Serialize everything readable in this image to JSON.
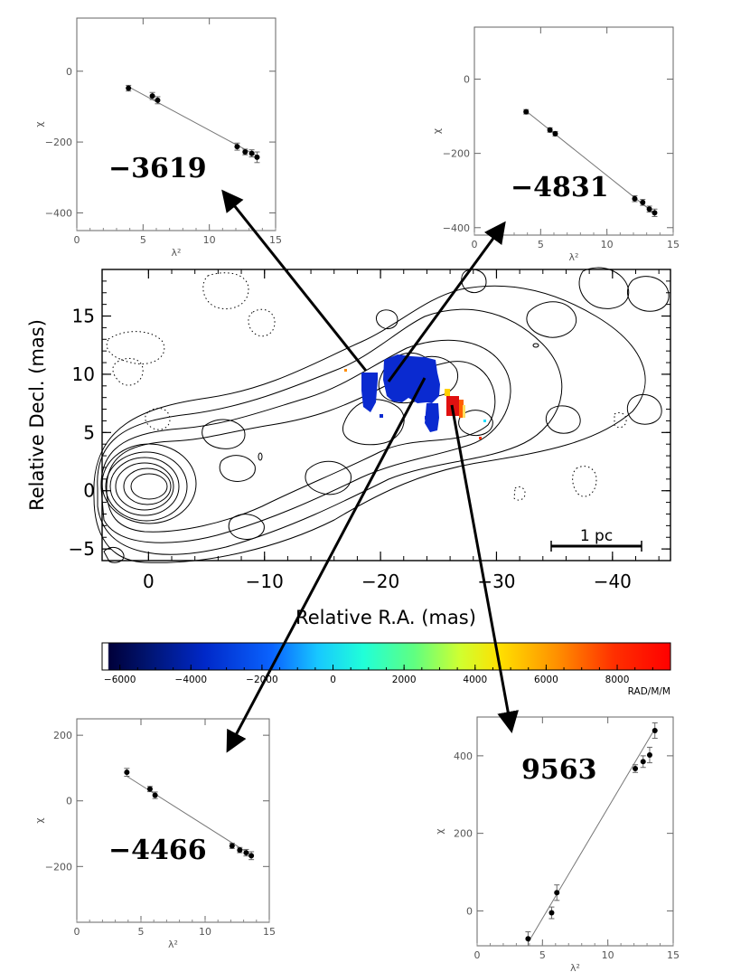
{
  "chart_data": [
    {
      "type": "scatter",
      "id": "rm-top-left",
      "rm_label": "−3619",
      "xlabel": "λ²",
      "ylabel": "χ",
      "xlim": [
        0,
        15
      ],
      "ylim": [
        -450,
        150
      ],
      "xticks": [
        0,
        5,
        10,
        15
      ],
      "yticks": [
        0,
        -200,
        -400
      ],
      "points": [
        {
          "x": 3.9,
          "y": -48,
          "err": 8
        },
        {
          "x": 5.7,
          "y": -70,
          "err": 10
        },
        {
          "x": 6.1,
          "y": -82,
          "err": 10
        },
        {
          "x": 12.1,
          "y": -213,
          "err": 10
        },
        {
          "x": 12.7,
          "y": -228,
          "err": 8
        },
        {
          "x": 13.2,
          "y": -232,
          "err": 10
        },
        {
          "x": 13.6,
          "y": -243,
          "err": 15
        }
      ],
      "fit": [
        [
          3.9,
          -44
        ],
        [
          13.6,
          -239
        ]
      ]
    },
    {
      "type": "scatter",
      "id": "rm-top-right",
      "rm_label": "−4831",
      "xlabel": "λ²",
      "ylabel": "χ",
      "xlim": [
        0,
        15
      ],
      "ylim": [
        -420,
        140
      ],
      "xticks": [
        0,
        5,
        10,
        15
      ],
      "yticks": [
        0,
        -200,
        -400
      ],
      "points": [
        {
          "x": 3.9,
          "y": -88,
          "err": 6
        },
        {
          "x": 5.7,
          "y": -137,
          "err": 6
        },
        {
          "x": 6.1,
          "y": -147,
          "err": 6
        },
        {
          "x": 12.1,
          "y": -322,
          "err": 8
        },
        {
          "x": 12.7,
          "y": -332,
          "err": 8
        },
        {
          "x": 13.2,
          "y": -350,
          "err": 8
        },
        {
          "x": 13.6,
          "y": -360,
          "err": 10
        }
      ],
      "fit": [
        [
          3.9,
          -86
        ],
        [
          13.6,
          -362
        ]
      ]
    },
    {
      "type": "scatter",
      "id": "rm-bottom-left",
      "rm_label": "−4466",
      "xlabel": "λ²",
      "ylabel": "χ",
      "xlim": [
        0,
        15
      ],
      "ylim": [
        -370,
        250
      ],
      "xticks": [
        0,
        5,
        10,
        15
      ],
      "yticks": [
        200,
        0,
        -200
      ],
      "points": [
        {
          "x": 3.9,
          "y": 87,
          "err": 12
        },
        {
          "x": 5.7,
          "y": 36,
          "err": 8
        },
        {
          "x": 6.1,
          "y": 17,
          "err": 10
        },
        {
          "x": 12.1,
          "y": -137,
          "err": 8
        },
        {
          "x": 12.7,
          "y": -150,
          "err": 8
        },
        {
          "x": 13.2,
          "y": -158,
          "err": 10
        },
        {
          "x": 13.6,
          "y": -167,
          "err": 12
        }
      ],
      "fit": [
        [
          3.9,
          75
        ],
        [
          13.6,
          -165
        ]
      ]
    },
    {
      "type": "scatter",
      "id": "rm-bottom-right",
      "rm_label": "9563",
      "xlabel": "λ²",
      "ylabel": "χ",
      "xlim": [
        0,
        15
      ],
      "ylim": [
        -90,
        500
      ],
      "xticks": [
        0,
        5,
        10,
        15
      ],
      "yticks": [
        0,
        200,
        400
      ],
      "points": [
        {
          "x": 3.9,
          "y": -72,
          "err": 18
        },
        {
          "x": 5.7,
          "y": -5,
          "err": 15
        },
        {
          "x": 6.1,
          "y": 47,
          "err": 20
        },
        {
          "x": 12.1,
          "y": 367,
          "err": 10
        },
        {
          "x": 12.7,
          "y": 385,
          "err": 15
        },
        {
          "x": 13.2,
          "y": 402,
          "err": 20
        },
        {
          "x": 13.6,
          "y": 465,
          "err": 20
        }
      ],
      "fit": [
        [
          3.9,
          -82
        ],
        [
          13.6,
          470
        ]
      ]
    },
    {
      "type": "contour",
      "id": "main-map",
      "xlabel": "Relative R.A. (mas)",
      "ylabel": "Relative Decl. (mas)",
      "xlim": [
        4,
        -45
      ],
      "ylim": [
        -6,
        19
      ],
      "xticks": [
        0,
        -10,
        -20,
        -30,
        -40
      ],
      "yticks": [
        -5,
        0,
        5,
        10,
        15
      ],
      "scalebar": {
        "label": "1 pc",
        "from_x": -34.8,
        "to_x": -42.5,
        "y": -5
      }
    },
    {
      "type": "colorbar",
      "id": "rm-colorbar",
      "range": [
        -6500,
        9500
      ],
      "ticks": [
        -6000,
        -4000,
        -2000,
        0,
        2000,
        4000,
        6000,
        8000
      ],
      "unit_label": "RAD/M/M"
    }
  ],
  "colors": {
    "rm_blue": "#0a2ad0",
    "rm_red": "#e01010",
    "contour": "#000000",
    "axis_gray": "#666666"
  }
}
